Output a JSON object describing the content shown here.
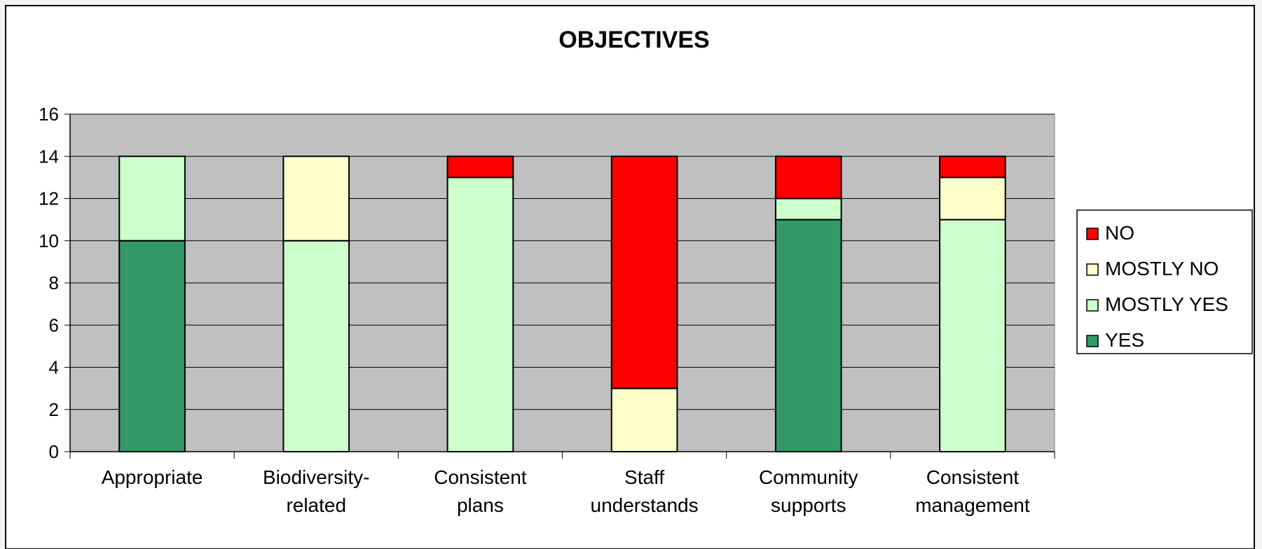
{
  "chart_data": {
    "type": "bar",
    "stacked": true,
    "title": "OBJECTIVES",
    "xlabel": "",
    "ylabel": "",
    "ylim": [
      0,
      16
    ],
    "yticks": [
      "0",
      "2",
      "4",
      "6",
      "8",
      "10",
      "12",
      "14",
      "16"
    ],
    "categories": [
      [
        "Appropriate"
      ],
      [
        "Biodiversity-",
        "related"
      ],
      [
        "Consistent",
        "plans"
      ],
      [
        "Staff",
        "understands"
      ],
      [
        "Community",
        "supports"
      ],
      [
        "Consistent",
        "management"
      ]
    ],
    "series": [
      {
        "name": "YES",
        "color": "#339966",
        "values": [
          10,
          0,
          0,
          0,
          11,
          0
        ]
      },
      {
        "name": "MOSTLY YES",
        "color": "#ccffcc",
        "values": [
          4,
          10,
          13,
          0,
          1,
          11
        ]
      },
      {
        "name": "MOSTLY NO",
        "color": "#ffffcc",
        "values": [
          0,
          4,
          0,
          3,
          0,
          2
        ]
      },
      {
        "name": "NO",
        "color": "#ff0000",
        "values": [
          0,
          0,
          1,
          11,
          2,
          1
        ]
      }
    ],
    "grid": true,
    "plot_background": "#c0c0c0",
    "legend_position": "right"
  }
}
